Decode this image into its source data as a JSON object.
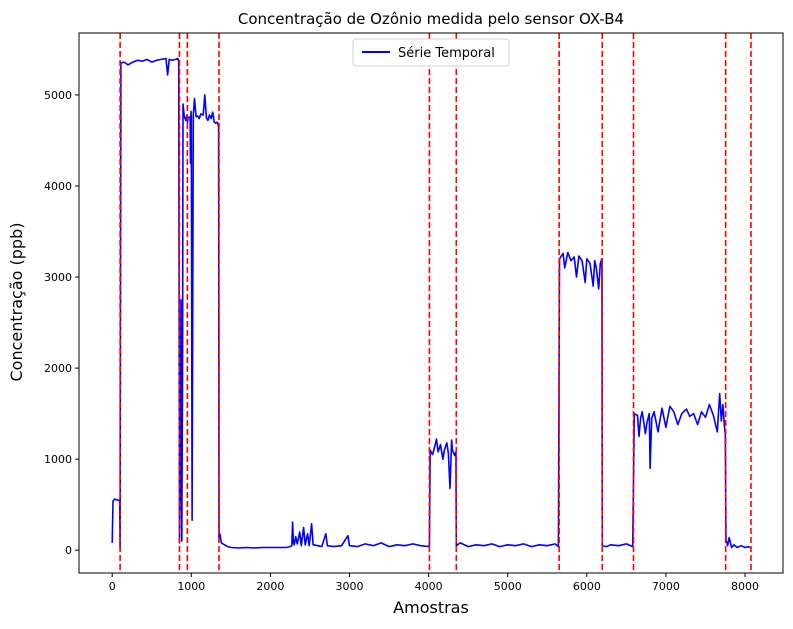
{
  "chart_data": {
    "type": "line",
    "title": "Concentração de Ozônio medida pelo sensor OX-B4",
    "xlabel": "Amostras",
    "ylabel": "Concentração (ppb)",
    "xlim": [
      -420,
      8480
    ],
    "ylim": [
      -250,
      5680
    ],
    "xticks": [
      0,
      1000,
      2000,
      3000,
      4000,
      5000,
      6000,
      7000,
      8000
    ],
    "xtick_labels": [
      "0",
      "1000",
      "2000",
      "3000",
      "4000",
      "5000",
      "6000",
      "7000",
      "8000"
    ],
    "yticks": [
      0,
      1000,
      2000,
      3000,
      4000,
      5000
    ],
    "ytick_labels": [
      "0",
      "1000",
      "2000",
      "3000",
      "4000",
      "5000"
    ],
    "grid": false,
    "legend": {
      "placement": "top-center",
      "entries": [
        "Série Temporal"
      ]
    },
    "series": [
      {
        "name": "Série Temporal",
        "color": "#0000ff",
        "points": [
          [
            0,
            80
          ],
          [
            10,
            540
          ],
          [
            30,
            560
          ],
          [
            80,
            550
          ],
          [
            95,
            540
          ],
          [
            100,
            30
          ],
          [
            110,
            5350
          ],
          [
            150,
            5360
          ],
          [
            200,
            5330
          ],
          [
            260,
            5360
          ],
          [
            320,
            5380
          ],
          [
            380,
            5370
          ],
          [
            440,
            5390
          ],
          [
            500,
            5360
          ],
          [
            560,
            5380
          ],
          [
            620,
            5390
          ],
          [
            680,
            5400
          ],
          [
            700,
            5220
          ],
          [
            720,
            5390
          ],
          [
            760,
            5380
          ],
          [
            800,
            5390
          ],
          [
            830,
            5400
          ],
          [
            840,
            5370
          ],
          [
            850,
            80
          ],
          [
            860,
            700
          ],
          [
            870,
            2750
          ],
          [
            880,
            100
          ],
          [
            890,
            2150
          ],
          [
            895,
            4900
          ],
          [
            910,
            4770
          ],
          [
            930,
            4720
          ],
          [
            945,
            4780
          ],
          [
            950,
            4700
          ],
          [
            960,
            4750
          ],
          [
            985,
            4760
          ],
          [
            990,
            4250
          ],
          [
            995,
            4820
          ],
          [
            1000,
            4760
          ],
          [
            1010,
            330
          ],
          [
            1025,
            4780
          ],
          [
            1040,
            4960
          ],
          [
            1060,
            4760
          ],
          [
            1080,
            4770
          ],
          [
            1100,
            4740
          ],
          [
            1120,
            4790
          ],
          [
            1150,
            4780
          ],
          [
            1170,
            5000
          ],
          [
            1190,
            4750
          ],
          [
            1210,
            4720
          ],
          [
            1230,
            4780
          ],
          [
            1250,
            4740
          ],
          [
            1270,
            4810
          ],
          [
            1290,
            4700
          ],
          [
            1310,
            4690
          ],
          [
            1330,
            4700
          ],
          [
            1345,
            4650
          ],
          [
            1350,
            120
          ],
          [
            1360,
            180
          ],
          [
            1380,
            80
          ],
          [
            1420,
            60
          ],
          [
            1460,
            40
          ],
          [
            1500,
            30
          ],
          [
            1600,
            25
          ],
          [
            1700,
            30
          ],
          [
            1800,
            25
          ],
          [
            1900,
            30
          ],
          [
            2000,
            30
          ],
          [
            2100,
            30
          ],
          [
            2200,
            30
          ],
          [
            2250,
            40
          ],
          [
            2270,
            50
          ],
          [
            2280,
            310
          ],
          [
            2290,
            80
          ],
          [
            2300,
            60
          ],
          [
            2320,
            150
          ],
          [
            2340,
            70
          ],
          [
            2370,
            200
          ],
          [
            2390,
            50
          ],
          [
            2420,
            250
          ],
          [
            2440,
            60
          ],
          [
            2470,
            180
          ],
          [
            2490,
            50
          ],
          [
            2520,
            290
          ],
          [
            2540,
            60
          ],
          [
            2600,
            50
          ],
          [
            2650,
            40
          ],
          [
            2700,
            180
          ],
          [
            2720,
            50
          ],
          [
            2800,
            40
          ],
          [
            2900,
            50
          ],
          [
            2980,
            160
          ],
          [
            3000,
            50
          ],
          [
            3100,
            40
          ],
          [
            3200,
            70
          ],
          [
            3300,
            50
          ],
          [
            3400,
            80
          ],
          [
            3500,
            40
          ],
          [
            3600,
            60
          ],
          [
            3700,
            50
          ],
          [
            3800,
            70
          ],
          [
            3900,
            50
          ],
          [
            4000,
            40
          ],
          [
            4010,
            60
          ],
          [
            4020,
            1100
          ],
          [
            4050,
            1050
          ],
          [
            4080,
            1150
          ],
          [
            4100,
            1220
          ],
          [
            4120,
            1080
          ],
          [
            4150,
            1160
          ],
          [
            4180,
            1000
          ],
          [
            4200,
            1100
          ],
          [
            4230,
            1180
          ],
          [
            4250,
            1060
          ],
          [
            4270,
            680
          ],
          [
            4290,
            1210
          ],
          [
            4300,
            1100
          ],
          [
            4330,
            1040
          ],
          [
            4345,
            1080
          ],
          [
            4350,
            50
          ],
          [
            4400,
            80
          ],
          [
            4500,
            40
          ],
          [
            4600,
            60
          ],
          [
            4700,
            50
          ],
          [
            4800,
            70
          ],
          [
            4900,
            40
          ],
          [
            5000,
            60
          ],
          [
            5100,
            50
          ],
          [
            5200,
            70
          ],
          [
            5300,
            40
          ],
          [
            5400,
            60
          ],
          [
            5500,
            50
          ],
          [
            5600,
            70
          ],
          [
            5640,
            40
          ],
          [
            5655,
            3200
          ],
          [
            5700,
            3260
          ],
          [
            5720,
            3100
          ],
          [
            5760,
            3270
          ],
          [
            5800,
            3180
          ],
          [
            5840,
            3220
          ],
          [
            5870,
            3000
          ],
          [
            5900,
            3230
          ],
          [
            5940,
            3180
          ],
          [
            5980,
            2940
          ],
          [
            6000,
            3200
          ],
          [
            6040,
            3150
          ],
          [
            6080,
            2900
          ],
          [
            6100,
            3180
          ],
          [
            6120,
            3100
          ],
          [
            6150,
            2870
          ],
          [
            6170,
            3150
          ],
          [
            6190,
            3200
          ],
          [
            6195,
            50
          ],
          [
            6250,
            40
          ],
          [
            6300,
            60
          ],
          [
            6400,
            50
          ],
          [
            6500,
            70
          ],
          [
            6580,
            40
          ],
          [
            6600,
            1500
          ],
          [
            6640,
            1480
          ],
          [
            6660,
            1250
          ],
          [
            6680,
            1450
          ],
          [
            6700,
            1520
          ],
          [
            6740,
            1280
          ],
          [
            6760,
            1400
          ],
          [
            6790,
            1500
          ],
          [
            6800,
            900
          ],
          [
            6820,
            1450
          ],
          [
            6850,
            1520
          ],
          [
            6900,
            1300
          ],
          [
            6950,
            1560
          ],
          [
            7000,
            1350
          ],
          [
            7050,
            1580
          ],
          [
            7100,
            1520
          ],
          [
            7150,
            1380
          ],
          [
            7200,
            1500
          ],
          [
            7260,
            1550
          ],
          [
            7300,
            1470
          ],
          [
            7350,
            1500
          ],
          [
            7400,
            1380
          ],
          [
            7450,
            1520
          ],
          [
            7500,
            1460
          ],
          [
            7550,
            1600
          ],
          [
            7600,
            1480
          ],
          [
            7650,
            1300
          ],
          [
            7680,
            1720
          ],
          [
            7700,
            1420
          ],
          [
            7720,
            1600
          ],
          [
            7740,
            1350
          ],
          [
            7750,
            1280
          ],
          [
            7760,
            120
          ],
          [
            7780,
            50
          ],
          [
            7800,
            140
          ],
          [
            7830,
            30
          ],
          [
            7860,
            60
          ],
          [
            7900,
            30
          ],
          [
            7950,
            50
          ],
          [
            8000,
            30
          ],
          [
            8040,
            40
          ],
          [
            8060,
            30
          ]
        ]
      }
    ],
    "vlines": {
      "color": "#ff0000",
      "style": "dashed",
      "x": [
        100,
        850,
        950,
        1350,
        4010,
        4350,
        5650,
        6195,
        6590,
        7755,
        8075
      ]
    }
  }
}
